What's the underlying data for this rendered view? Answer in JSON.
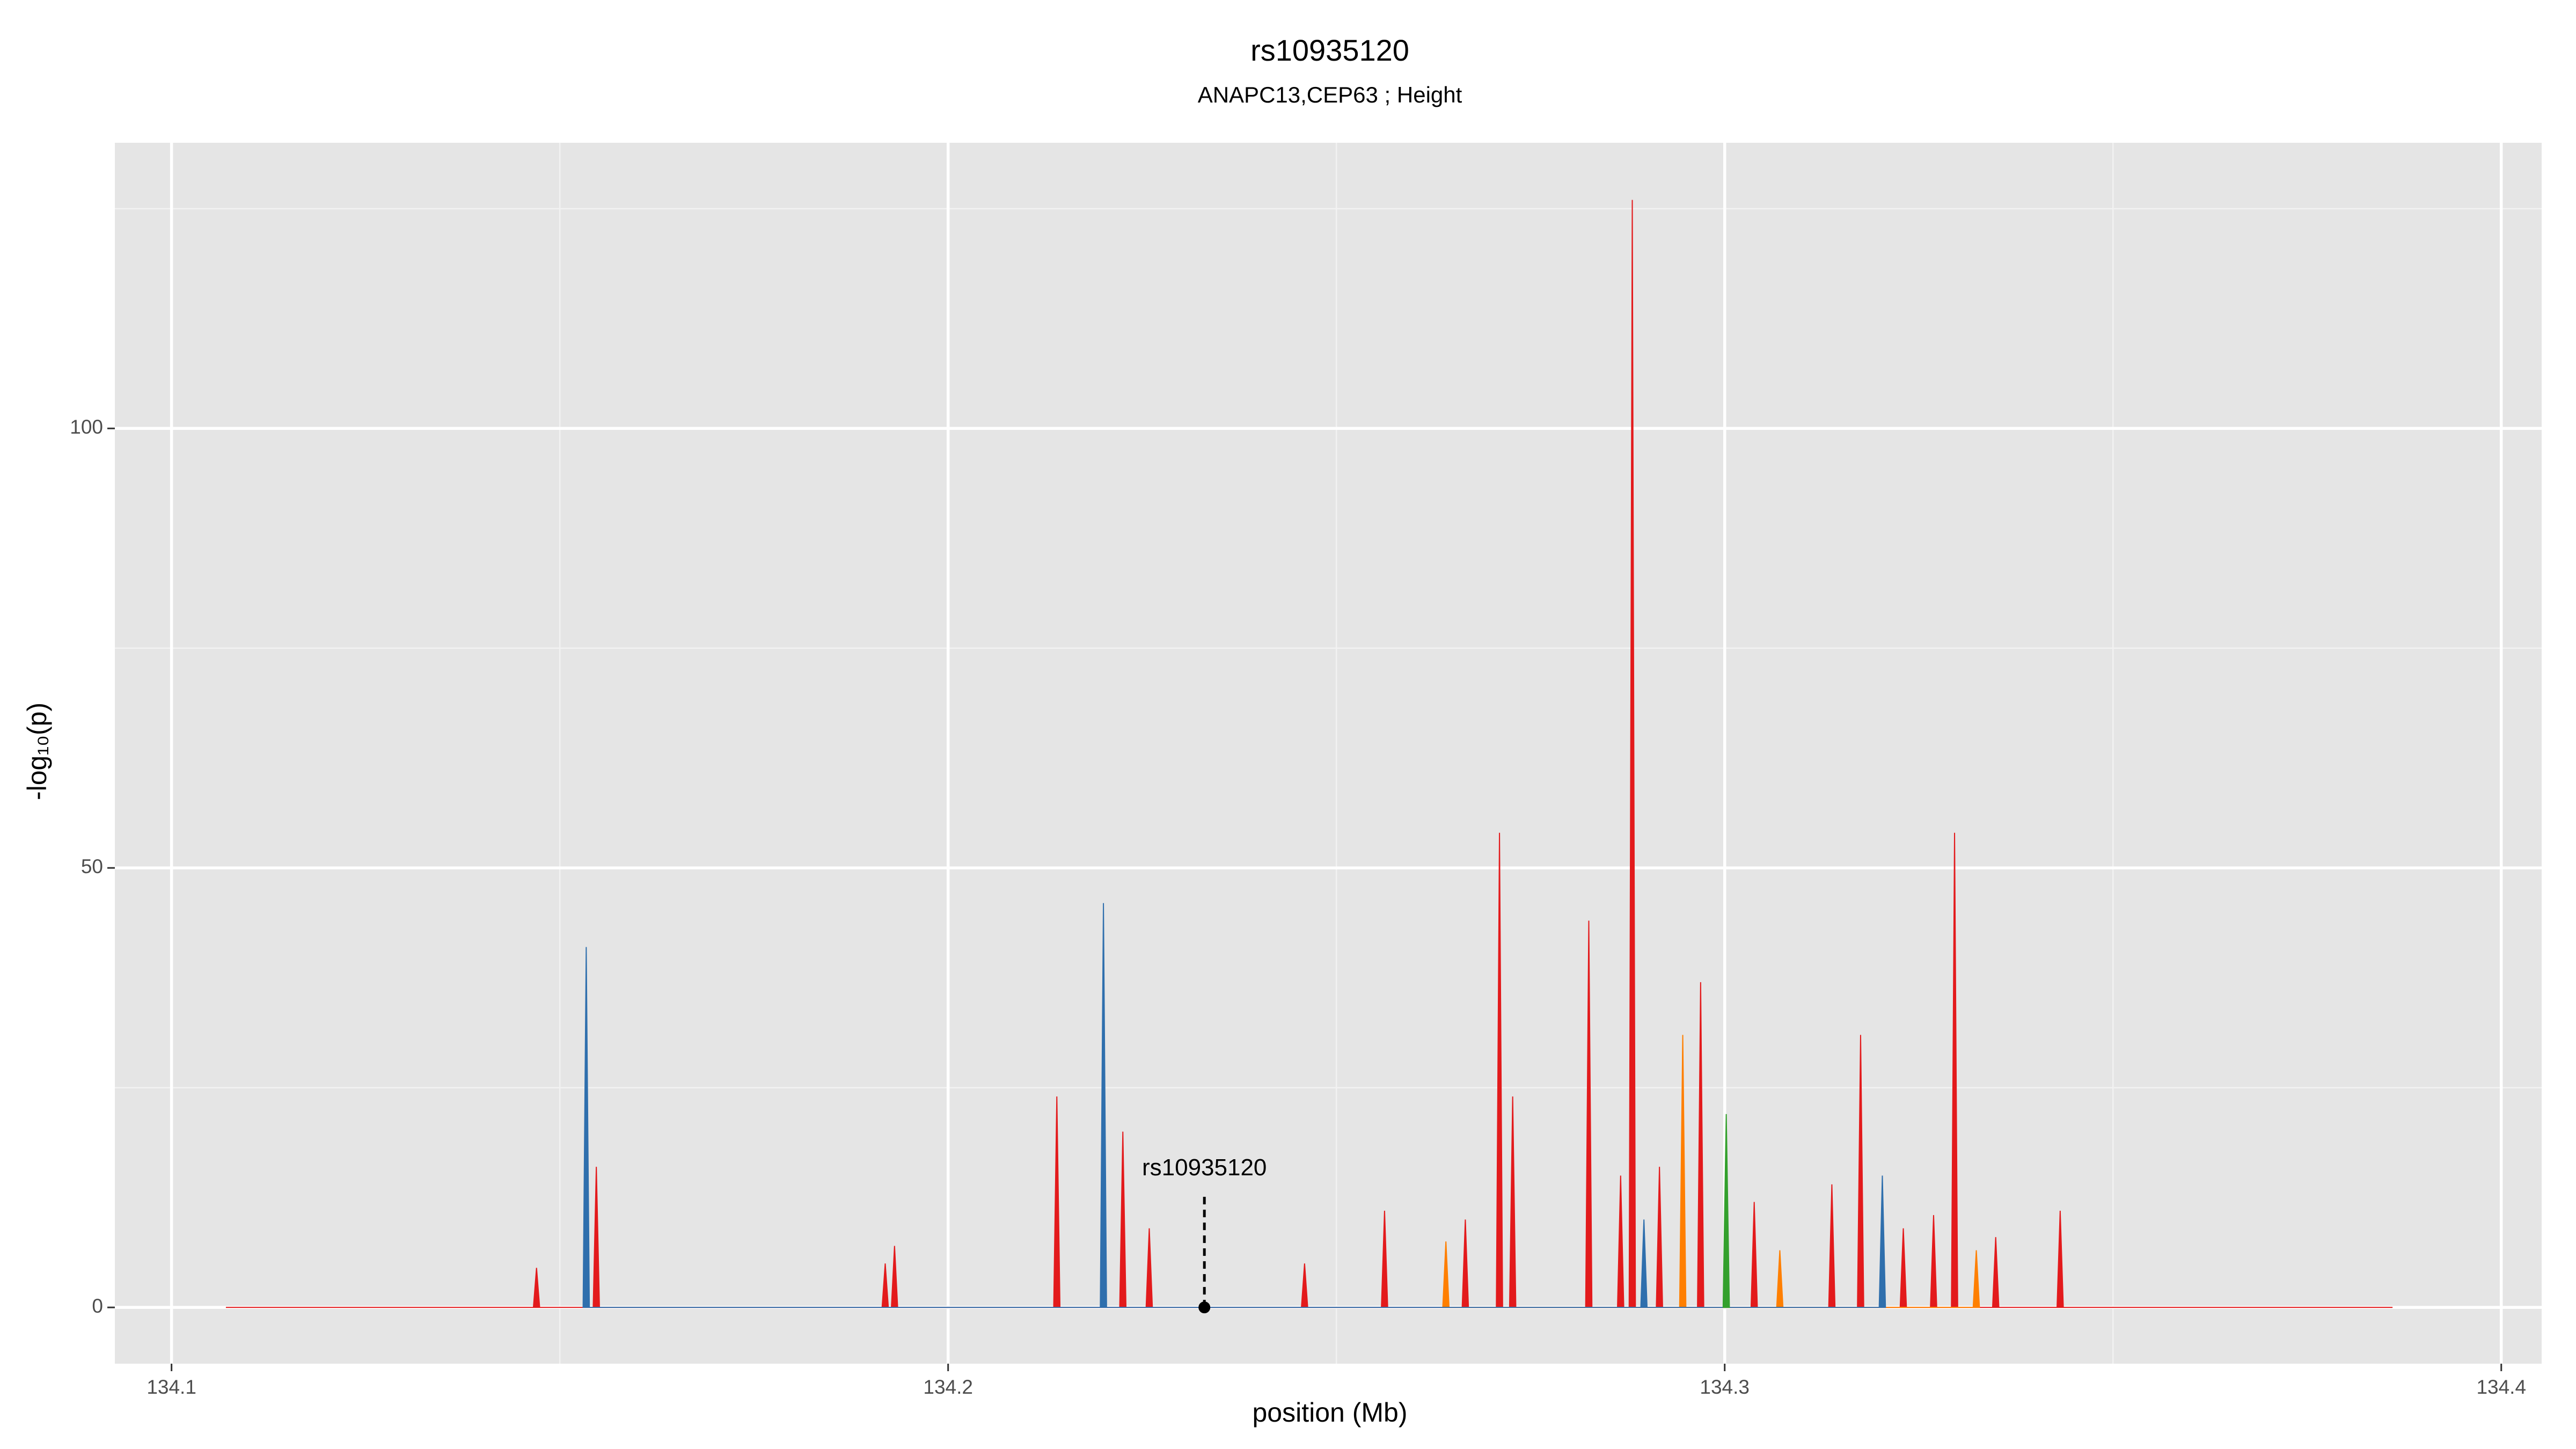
{
  "chart_data": {
    "type": "area",
    "title": "rs10935120",
    "subtitle": "ANAPC13,CEP63 ; Height",
    "x_label": "position (Mb)",
    "y_label": "-log₁₀(p)",
    "xlim": [
      134.0927,
      134.4052
    ],
    "ylim": [
      -6.4,
      132.5
    ],
    "xticks": [
      134.1,
      134.2,
      134.3,
      134.4
    ],
    "yticks": [
      0,
      50,
      100
    ],
    "x_minor_ticks": [
      134.15,
      134.25,
      134.35
    ],
    "y_minor_ticks": [
      25,
      75,
      125
    ],
    "grid": true,
    "annotation": {
      "text": "rs10935120",
      "x": 134.233,
      "y": 0
    },
    "series": [
      {
        "color": "#e31a1c",
        "x": [
          134.107,
          134.1466,
          134.147,
          134.1474,
          134.1543,
          134.1547,
          134.1551,
          134.1915,
          134.1919,
          134.1923,
          134.1927,
          134.1931,
          134.1935,
          134.2136,
          134.214,
          134.2144,
          134.2221,
          134.2225,
          134.2229,
          134.2255,
          134.2259,
          134.2263,
          134.2455,
          134.2459,
          134.2463,
          134.2558,
          134.2562,
          134.2566,
          134.2662,
          134.2666,
          134.267,
          134.2706,
          134.271,
          134.2714,
          134.2723,
          134.2727,
          134.2731,
          134.2821,
          134.2825,
          134.2829,
          134.2862,
          134.2866,
          134.287,
          134.2877,
          134.2881,
          134.2885,
          134.2912,
          134.2916,
          134.292,
          134.2965,
          134.2969,
          134.2973,
          134.3034,
          134.3038,
          134.3042,
          134.3134,
          134.3138,
          134.3142,
          134.3171,
          134.3175,
          134.3179,
          134.3226,
          134.323,
          134.3234,
          134.3265,
          134.3269,
          134.3273,
          134.3292,
          134.3296,
          134.33,
          134.3345,
          134.3349,
          134.3353,
          134.3428,
          134.3432,
          134.3436,
          134.386
        ],
        "values": [
          0,
          0,
          4.5,
          0,
          0,
          16,
          0,
          0,
          5,
          0,
          0,
          7,
          0,
          0,
          24,
          0,
          0,
          20,
          0,
          0,
          9,
          0,
          0,
          5,
          0,
          0,
          11,
          0,
          0,
          10,
          0,
          0,
          54,
          0,
          0,
          24,
          0,
          0,
          44,
          0,
          0,
          15,
          0,
          0,
          126,
          0,
          0,
          16,
          0,
          0,
          37,
          0,
          0,
          12,
          0,
          0,
          14,
          0,
          0,
          31,
          0,
          0,
          9,
          0,
          0,
          10.5,
          0,
          0,
          54,
          0,
          0,
          8,
          0,
          0,
          11,
          0,
          0
        ]
      },
      {
        "color": "#ff7f00",
        "x": [
          134.2637,
          134.2641,
          134.2645,
          134.2942,
          134.2946,
          134.295,
          134.3067,
          134.3071,
          134.3075,
          134.332,
          134.3324,
          134.3328
        ],
        "values": [
          0,
          7.5,
          0,
          0,
          31,
          0,
          0,
          6.5,
          0,
          0,
          6.5,
          0
        ]
      },
      {
        "color": "#2f6fad",
        "x": [
          134.153,
          134.1534,
          134.1538,
          134.2196,
          134.22,
          134.2204,
          134.2892,
          134.2896,
          134.29,
          134.3199,
          134.3203,
          134.3207
        ],
        "values": [
          0,
          41,
          0,
          0,
          46,
          0,
          0,
          10,
          0,
          0,
          15,
          0
        ]
      },
      {
        "color": "#33a02c",
        "x": [
          134.2998,
          134.3002,
          134.3006
        ],
        "values": [
          0,
          22,
          0
        ]
      }
    ]
  }
}
